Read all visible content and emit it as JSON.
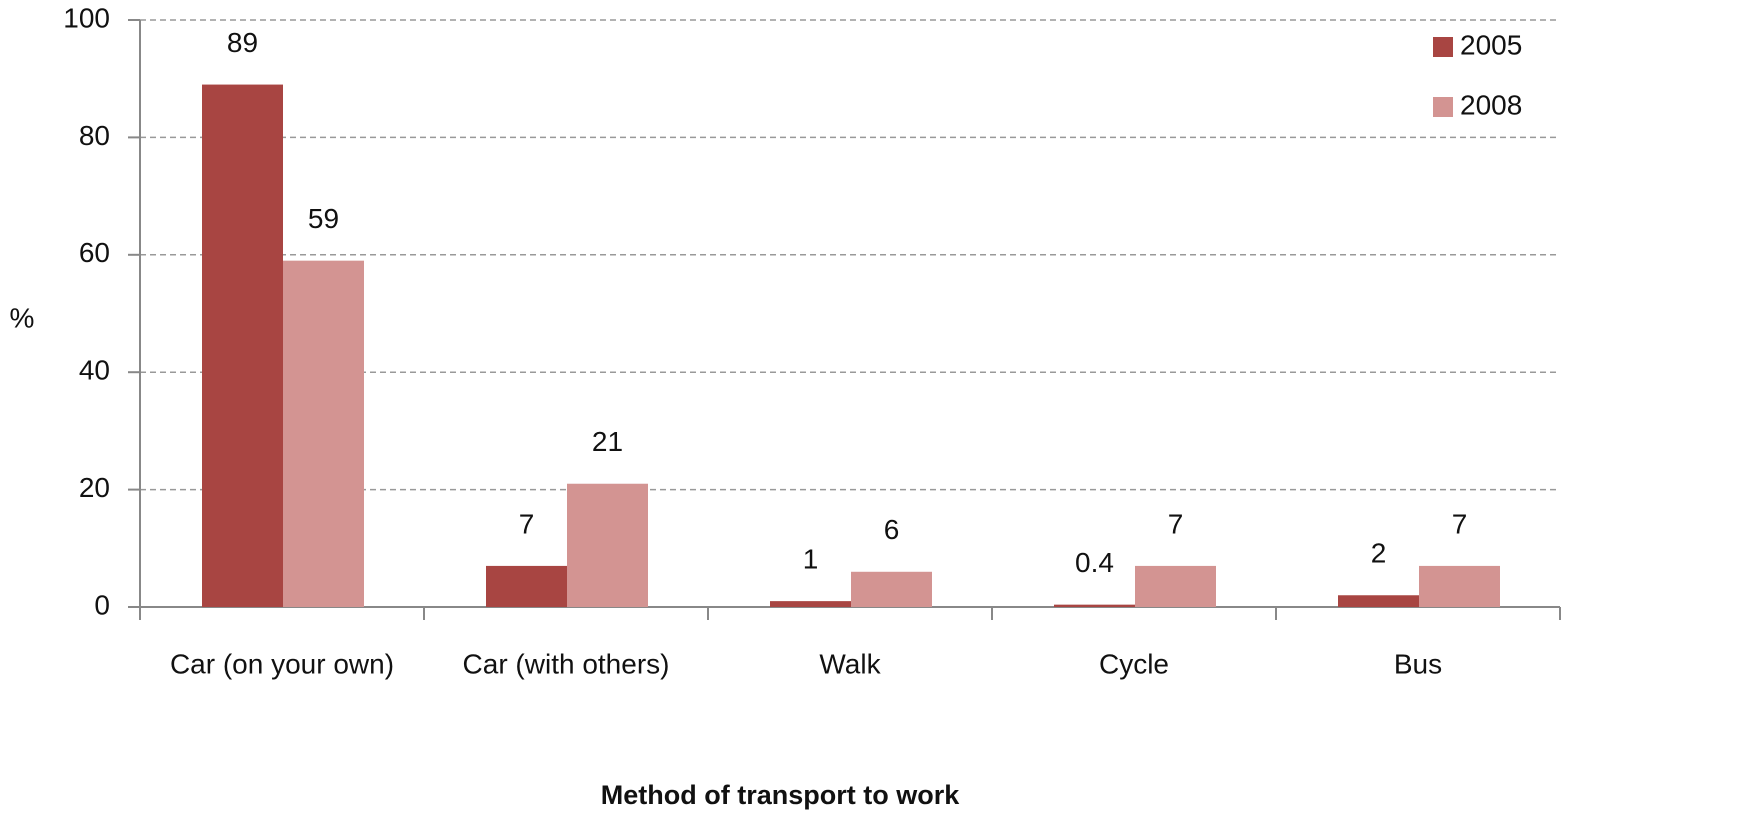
{
  "chart_data": {
    "type": "bar",
    "x_label": "Method of transport to work",
    "y_label": "%",
    "categories": [
      "Car (on your own)",
      "Car (with others)",
      "Walk",
      "Cycle",
      "Bus"
    ],
    "series": [
      {
        "name": "2005",
        "color": "#a84542",
        "values": [
          89,
          7,
          1,
          0.4,
          2
        ]
      },
      {
        "name": "2008",
        "color": "#d39492",
        "values": [
          59,
          21,
          6,
          7,
          7
        ]
      }
    ],
    "ylim": [
      0,
      100
    ],
    "yticks": [
      0,
      20,
      40,
      60,
      80,
      100
    ],
    "grid": true,
    "legend": "top-right"
  }
}
